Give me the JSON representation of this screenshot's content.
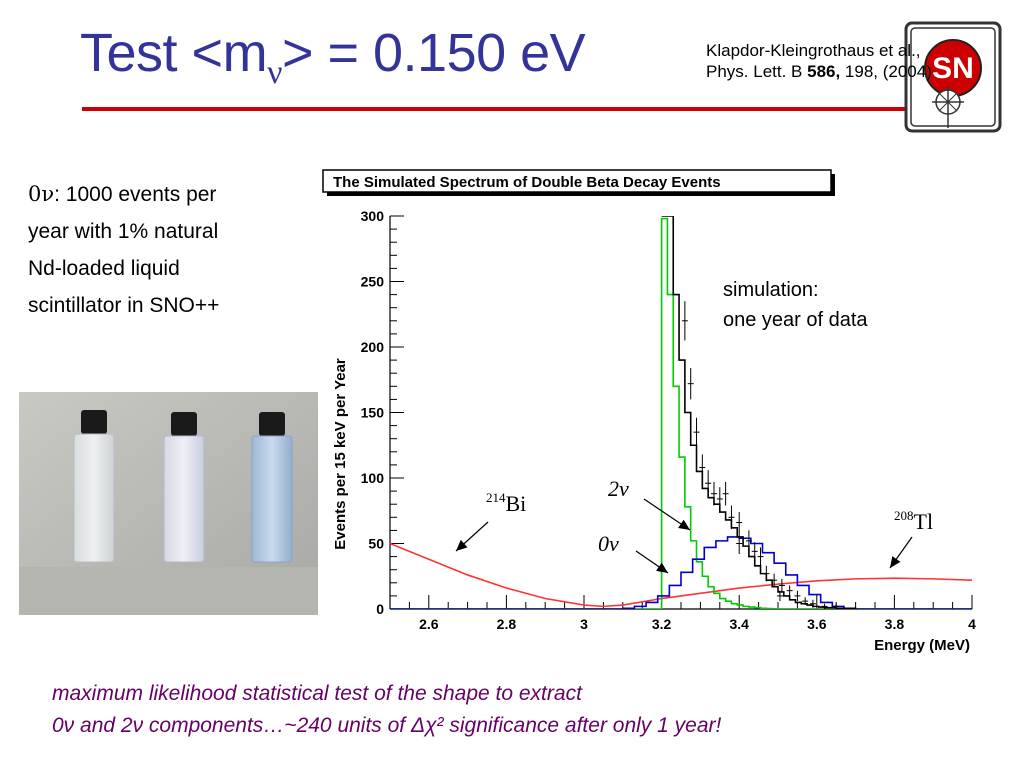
{
  "title": {
    "prefix": "Test <m",
    "subscript": "ν",
    "suffix": "> = 0.150 eV"
  },
  "reference": {
    "line1": "Klapdor-Kleingrothaus et al.,",
    "line2_prefix": "Phys. Lett. B ",
    "line2_bold": "586,",
    "line2_suffix": " 198, (2004)"
  },
  "logo": {
    "icon": "sno-plus-logo-icon",
    "text": "SNO+"
  },
  "left_text": {
    "lead": "0ν",
    "line1": ": 1000 events per",
    "line2": "year with 1% natural",
    "line3": "Nd-loaded liquid",
    "line4": "scintillator in SNO++"
  },
  "photo": {
    "icon": "scintillator-vials-photo-icon"
  },
  "sim_note": {
    "line1": "simulation:",
    "line2": "one year of data"
  },
  "footer": {
    "line1": "maximum likelihood statistical test of the shape to extract",
    "line2": "0ν and 2ν components…~240 units of Δχ² significance after only 1 year!"
  },
  "colors": {
    "title": "#33339a",
    "rule": "#cc0000",
    "footer": "#660066",
    "bi_tl_curve": "#ff3333",
    "two_nu_curve": "#00cc00",
    "zero_nu_curve": "#0000cc",
    "data_curve": "#000000"
  },
  "chart_data": {
    "type": "line",
    "title": "The Simulated Spectrum of Double Beta Decay Events",
    "xlabel": "Energy (MeV)",
    "ylabel": "Events per 15 keV per Year",
    "xlim": [
      2.5,
      4.0
    ],
    "ylim": [
      0,
      300
    ],
    "xticks": [
      "2.6",
      "2.8",
      "3",
      "3.2",
      "3.4",
      "3.6",
      "3.8",
      "4"
    ],
    "xtick_values": [
      2.6,
      2.8,
      3.0,
      3.2,
      3.4,
      3.6,
      3.8,
      4.0
    ],
    "yticks": [
      "0",
      "50",
      "100",
      "150",
      "200",
      "250",
      "300"
    ],
    "ytick_values": [
      0,
      50,
      100,
      150,
      200,
      250,
      300
    ],
    "grid": false,
    "annotations": [
      {
        "text": "Bi",
        "sup": "214"
      },
      {
        "text": "2ν",
        "sup": ""
      },
      {
        "text": "0ν",
        "sup": ""
      },
      {
        "text": "Tl",
        "sup": "208"
      }
    ],
    "series": [
      {
        "color": "#ff3333",
        "style": "line",
        "x": [
          2.5,
          2.6,
          2.7,
          2.8,
          2.9,
          3.0,
          3.05,
          3.1,
          3.2,
          3.3,
          3.4,
          3.5,
          3.6,
          3.7,
          3.8,
          3.9,
          4.0
        ],
        "y": [
          50,
          38,
          26,
          16,
          8,
          3,
          2,
          3,
          8,
          12,
          16,
          19,
          21.5,
          23,
          23.5,
          23,
          22
        ]
      },
      {
        "color": "#00cc00",
        "style": "step",
        "x": [
          2.5,
          3.0,
          3.1,
          3.15,
          3.2,
          3.215,
          3.23,
          3.245,
          3.26,
          3.275,
          3.29,
          3.305,
          3.32,
          3.335,
          3.35,
          3.365,
          3.38,
          3.395,
          3.41,
          3.425,
          3.44,
          3.455,
          3.47,
          3.485,
          3.5,
          3.53,
          3.56,
          3.6,
          4.0
        ],
        "y": [
          0,
          0,
          0,
          0,
          298,
          240,
          170,
          116,
          78,
          52,
          36,
          25,
          17,
          12,
          8,
          6,
          4,
          3,
          2,
          1.5,
          1,
          0.5,
          0.3,
          0.2,
          0,
          0,
          0,
          0,
          0
        ]
      },
      {
        "color": "#0000cc",
        "style": "step",
        "x": [
          2.5,
          3.0,
          3.1,
          3.13,
          3.16,
          3.19,
          3.22,
          3.25,
          3.28,
          3.31,
          3.34,
          3.37,
          3.4,
          3.43,
          3.46,
          3.49,
          3.52,
          3.55,
          3.58,
          3.61,
          3.64,
          3.67,
          4.0
        ],
        "y": [
          0,
          0,
          0.5,
          2,
          5,
          10,
          18,
          28,
          38,
          47,
          52,
          55,
          54,
          50,
          43,
          35,
          26,
          18,
          11,
          5,
          2,
          0,
          0
        ]
      },
      {
        "color": "#000000",
        "style": "step",
        "x": [
          3.2,
          3.215,
          3.23,
          3.245,
          3.26,
          3.275,
          3.29,
          3.305,
          3.32,
          3.335,
          3.35,
          3.365,
          3.38,
          3.395,
          3.41,
          3.425,
          3.44,
          3.455,
          3.47,
          3.485,
          3.5,
          3.515,
          3.53,
          3.545,
          3.56,
          3.575,
          3.59,
          3.605,
          3.62,
          3.65,
          3.7
        ],
        "y": [
          300,
          300,
          240,
          190,
          150,
          125,
          105,
          92,
          85,
          80,
          74,
          68,
          62,
          55,
          48,
          40,
          33,
          27,
          22,
          17,
          13,
          10,
          7,
          5,
          4,
          3,
          2,
          1.5,
          1,
          0.5,
          0
        ]
      }
    ],
    "error_bars": [
      [
        3.26,
        220,
        15
      ],
      [
        3.275,
        172,
        12
      ],
      [
        3.29,
        135,
        11
      ],
      [
        3.305,
        108,
        10
      ],
      [
        3.32,
        96,
        10
      ],
      [
        3.335,
        88,
        9
      ],
      [
        3.35,
        84,
        9
      ],
      [
        3.365,
        88,
        9
      ],
      [
        3.38,
        70,
        9
      ],
      [
        3.4,
        66,
        8
      ],
      [
        3.425,
        52,
        8
      ],
      [
        3.44,
        44,
        7
      ],
      [
        3.455,
        40,
        7
      ],
      [
        3.47,
        27,
        6
      ],
      [
        3.49,
        22,
        5
      ],
      [
        3.51,
        18,
        5
      ],
      [
        3.53,
        14,
        4
      ],
      [
        3.55,
        10,
        4
      ],
      [
        3.57,
        6,
        3
      ],
      [
        3.59,
        4,
        3
      ],
      [
        3.62,
        2,
        2
      ],
      [
        3.65,
        2,
        2
      ],
      [
        3.4,
        50,
        8
      ],
      [
        3.505,
        10,
        4
      ]
    ]
  }
}
